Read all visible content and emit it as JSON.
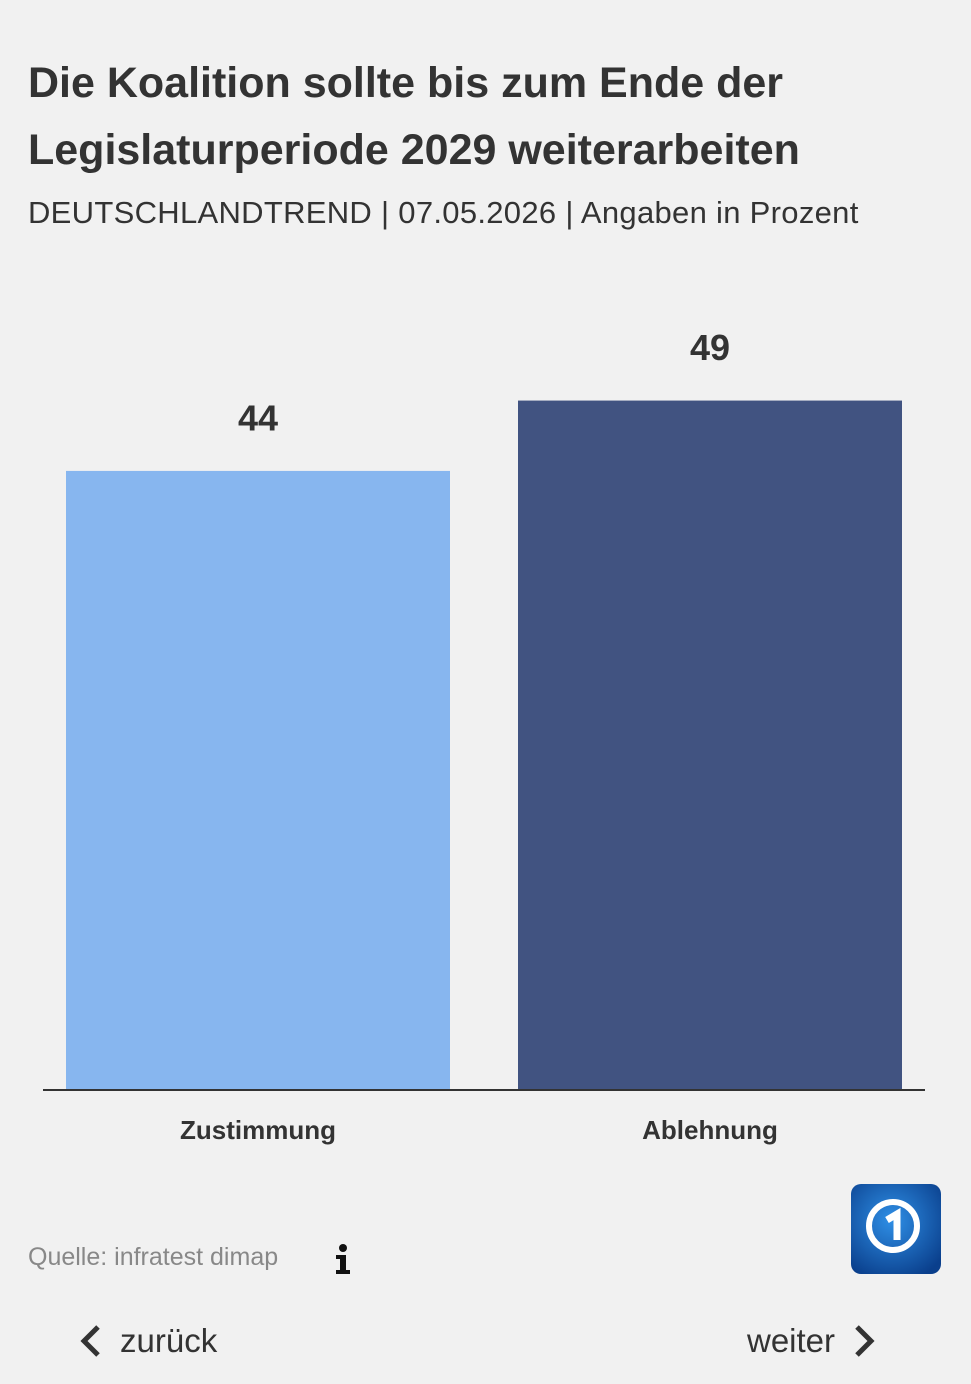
{
  "chart_data": {
    "type": "bar",
    "title": "Die Koalition sollte bis zum Ende der Legislaturperiode 2029 weiterarbeiten",
    "subtitle": "DEUTSCHLANDTREND | 07.05.2026 | Angaben in Prozent",
    "categories": [
      "Zustimmung",
      "Ablehnung"
    ],
    "values": [
      44,
      49
    ],
    "colors": [
      "#87b6ef",
      "#415381"
    ],
    "source": "Quelle: infratest dimap"
  },
  "navigation": {
    "back": "zurück",
    "next": "weiter"
  }
}
